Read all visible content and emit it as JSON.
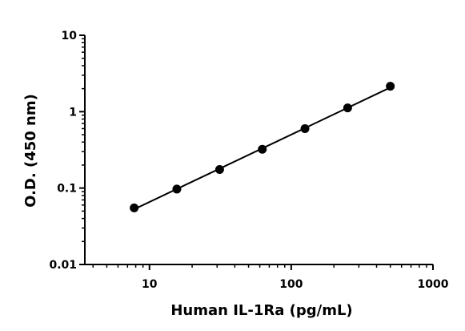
{
  "chart_data": {
    "type": "scatter",
    "title": "",
    "xlabel": "Human IL-1Ra (pg/mL)",
    "ylabel": "O.D. (450 nm)",
    "xscale": "log",
    "yscale": "log",
    "xlim": [
      3.5,
      1000
    ],
    "ylim": [
      0.01,
      10
    ],
    "xticks": [
      {
        "value": 10,
        "label": "10"
      },
      {
        "value": 100,
        "label": "100"
      },
      {
        "value": 1000,
        "label": "1000"
      }
    ],
    "yticks": [
      {
        "value": 0.01,
        "label": "0.01"
      },
      {
        "value": 0.1,
        "label": "0.1"
      },
      {
        "value": 1,
        "label": "1"
      },
      {
        "value": 10,
        "label": "10"
      }
    ],
    "grid": false,
    "legend": "none",
    "series": [
      {
        "x": [
          7.8,
          15.6,
          31.25,
          62.5,
          125,
          250,
          500
        ],
        "y": [
          0.055,
          0.097,
          0.175,
          0.322,
          0.6,
          1.12,
          2.15
        ],
        "fit": "linear-log-log"
      }
    ],
    "color": "#000000"
  }
}
